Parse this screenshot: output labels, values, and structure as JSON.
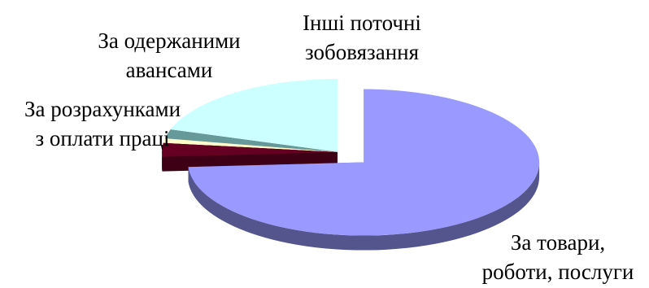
{
  "chart_data": {
    "type": "pie",
    "style": "3d-exploded",
    "title": "",
    "slices": [
      {
        "label_lines": [
          "За товари,",
          "роботи, послуги"
        ],
        "value": 74.0,
        "color": "#9999ff",
        "side_color": "#55558e",
        "exploded": true
      },
      {
        "label_lines": [
          "За розрахунками",
          "з оплати праці"
        ],
        "value": 3.0,
        "color": "#660022",
        "side_color": "#3d0014",
        "exploded": false
      },
      {
        "label_lines": [],
        "value": 1.0,
        "color": "#ffffcc",
        "side_color": "#a8a887",
        "exploded": false
      },
      {
        "label_lines": [],
        "value": 2.0,
        "color": "#669999",
        "side_color": "#3f5f5f",
        "exploded": false
      },
      {
        "label_lines": [
          "Інші поточні",
          "зобовязання"
        ],
        "value": 20.0,
        "color": "#ccffff",
        "side_color": "#8cb0b0",
        "exploded": false
      }
    ],
    "extra_labels": [
      {
        "lines": [
          "За одержаними",
          "авансами"
        ]
      }
    ],
    "legend": "none"
  }
}
